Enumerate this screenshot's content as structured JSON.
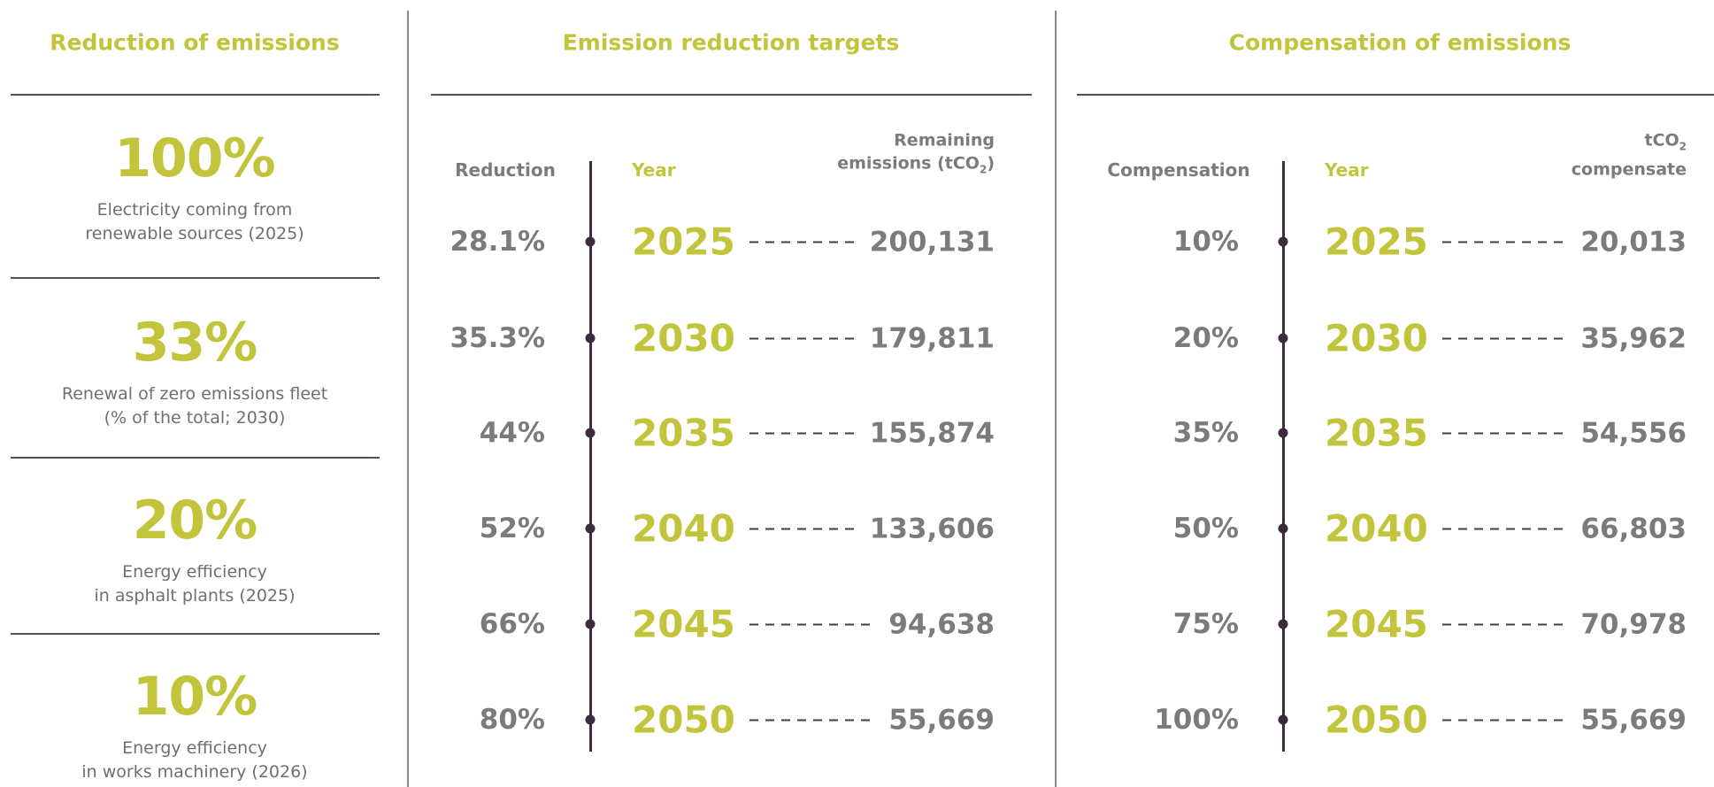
{
  "left": {
    "title": "Reduction of emissions",
    "items": [
      {
        "value": "100%",
        "lines": [
          "Electricity coming from",
          "renewable sources (2025)"
        ]
      },
      {
        "value": "33%",
        "lines": [
          "Renewal of zero emissions fleet",
          "(% of the total; 2030)"
        ]
      },
      {
        "value": "20%",
        "lines": [
          "Energy efficiency",
          "in asphalt plants (2025)"
        ]
      },
      {
        "value": "10%",
        "lines": [
          "Energy efficiency",
          "in works machinery (2026)"
        ]
      }
    ]
  },
  "middle": {
    "title": "Emission reduction targets",
    "headers": {
      "first": "Reduction",
      "year": "Year",
      "line1": "Remaining",
      "line2": "emissions (tCO",
      "sub": "2",
      "post": ")"
    },
    "rows": [
      [
        "28.1%",
        "2025",
        "200,131"
      ],
      [
        "35.3%",
        "2030",
        "179,811"
      ],
      [
        "44%",
        "2035",
        "155,874"
      ],
      [
        "52%",
        "2040",
        "133,606"
      ],
      [
        "66%",
        "2045",
        "94,638"
      ],
      [
        "80%",
        "2050",
        "55,669"
      ]
    ]
  },
  "right": {
    "title": "Compensation of emissions",
    "headers": {
      "first": "Compensation",
      "year": "Year",
      "line1": "tCO",
      "sub": "2",
      "line2": "compensate"
    },
    "rows": [
      [
        "10%",
        "2025",
        "20,013"
      ],
      [
        "20%",
        "2030",
        "35,962"
      ],
      [
        "35%",
        "2035",
        "54,556"
      ],
      [
        "50%",
        "2040",
        "66,803"
      ],
      [
        "75%",
        "2045",
        "70,978"
      ],
      [
        "100%",
        "2050",
        "55,669"
      ]
    ]
  }
}
